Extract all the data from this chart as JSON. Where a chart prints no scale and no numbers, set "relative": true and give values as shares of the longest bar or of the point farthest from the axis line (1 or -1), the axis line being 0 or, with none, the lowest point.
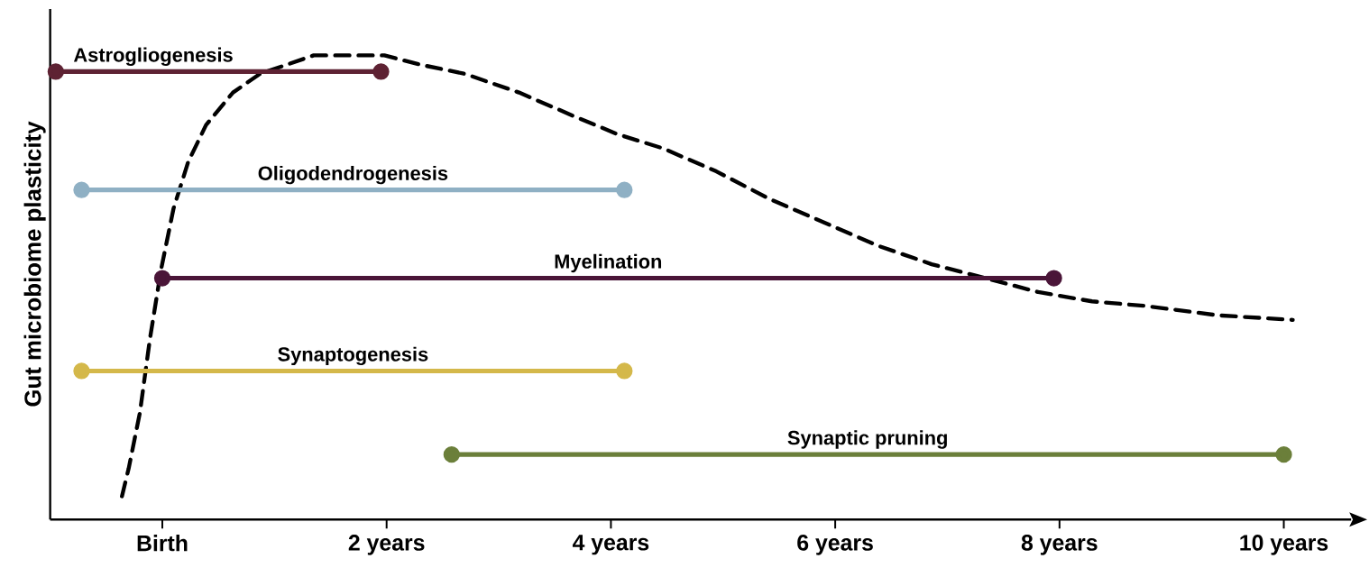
{
  "chart_data": {
    "type": "line",
    "relative": true,
    "ylabel": "Gut microbiome plasticity",
    "xlim": [
      -1,
      10.6
    ],
    "xticks": [
      {
        "value": 0,
        "label": "Birth"
      },
      {
        "value": 2,
        "label": "2 years"
      },
      {
        "value": 4,
        "label": "4 years"
      },
      {
        "value": 6,
        "label": "6 years"
      },
      {
        "value": 8,
        "label": "8 years"
      },
      {
        "value": 10,
        "label": "10 years"
      }
    ],
    "grid": false,
    "legend": false,
    "series": [
      {
        "color": "#000000",
        "line_style": "dashed",
        "marker": "none",
        "x": [
          -0.36,
          -0.3,
          -0.2,
          -0.11,
          -0.01,
          0.1,
          0.23,
          0.39,
          0.63,
          0.87,
          1.11,
          1.35,
          1.74,
          1.98,
          2.3,
          2.7,
          3.18,
          3.66,
          4.06,
          4.46,
          4.94,
          5.42,
          5.9,
          6.38,
          6.86,
          7.34,
          7.81,
          8.29,
          8.77,
          9.41,
          10.08
        ],
        "values": [
          0.05,
          0.11,
          0.23,
          0.39,
          0.54,
          0.67,
          0.77,
          0.85,
          0.92,
          0.96,
          0.98,
          1.0,
          1.0,
          1.0,
          0.98,
          0.96,
          0.92,
          0.87,
          0.83,
          0.8,
          0.75,
          0.69,
          0.64,
          0.59,
          0.55,
          0.52,
          0.49,
          0.47,
          0.46,
          0.44,
          0.43
        ]
      },
      {
        "name": "Astrogliogenesis",
        "color": "#5e2233",
        "line_style": "solid",
        "marker": "circle",
        "x": [
          -0.95,
          1.95
        ],
        "values": [
          0.965,
          0.965
        ]
      },
      {
        "name": "Oligodendrogenesis",
        "color": "#8fb0c4",
        "line_style": "solid",
        "marker": "circle",
        "x": [
          -0.72,
          4.12
        ],
        "values": [
          0.71,
          0.71
        ]
      },
      {
        "name": "Myelination",
        "color": "#4a1538",
        "line_style": "solid",
        "marker": "circle",
        "x": [
          0,
          7.95
        ],
        "values": [
          0.52,
          0.52
        ]
      },
      {
        "name": "Synaptogenesis",
        "color": "#d4b84a",
        "line_style": "solid",
        "marker": "circle",
        "x": [
          -0.72,
          4.12
        ],
        "values": [
          0.32,
          0.32
        ]
      },
      {
        "name": "Synaptic pruning",
        "color": "#6b7f3a",
        "line_style": "solid",
        "marker": "circle",
        "x": [
          2.58,
          10
        ],
        "values": [
          0.14,
          0.14
        ]
      }
    ]
  }
}
